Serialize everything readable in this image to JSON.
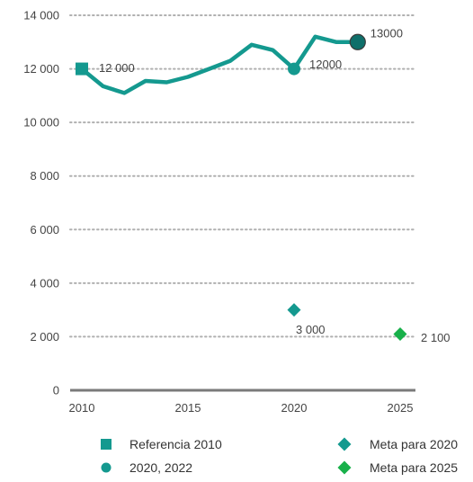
{
  "chart_data": {
    "type": "line",
    "title": "",
    "xlabel": "",
    "ylabel": "",
    "xlim": [
      2010,
      2025
    ],
    "ylim": [
      0,
      14000
    ],
    "grid": true,
    "legend_position": "bottom",
    "x_ticks": [
      2010,
      2015,
      2020,
      2025
    ],
    "x_tick_labels": [
      "2010",
      "2015",
      "2020",
      "2025"
    ],
    "y_ticks": [
      0,
      2000,
      4000,
      6000,
      8000,
      10000,
      12000,
      14000
    ],
    "y_tick_labels": [
      "0",
      "2 000",
      "4 000",
      "6 000",
      "8 000",
      "10 000",
      "12 000",
      "14 000"
    ],
    "colors": {
      "line": "#14998f",
      "marker_dark": "#0f6f6a",
      "goal_2025": "#18b04a",
      "grid": "#b0b0b0",
      "axis": "#7a7a7a",
      "text": "#444444"
    },
    "series": [
      {
        "x": [
          2010,
          2011,
          2012,
          2013,
          2014,
          2015,
          2016,
          2017,
          2018,
          2019,
          2020,
          2021,
          2022,
          2023
        ],
        "y": [
          12000,
          11350,
          11100,
          11550,
          11500,
          11700,
          12000,
          12300,
          12900,
          12700,
          12000,
          13200,
          13000,
          13000
        ]
      }
    ],
    "points": [
      {
        "key": "ref2010",
        "x": 2010,
        "y": 12000,
        "marker": "square",
        "color": "#14998f",
        "label": "12 000"
      },
      {
        "key": "p2020",
        "x": 2020,
        "y": 12000,
        "marker": "circle",
        "color": "#14998f",
        "label": "12000"
      },
      {
        "key": "p2022",
        "x": 2023,
        "y": 13000,
        "marker": "circle-dark",
        "color": "#0f6f6a",
        "label": "13000"
      },
      {
        "key": "goal2020",
        "x": 2020,
        "y": 3000,
        "marker": "diamond",
        "color": "#14998f",
        "label": "3 000"
      },
      {
        "key": "goal2025",
        "x": 2025,
        "y": 2100,
        "marker": "diamond",
        "color": "#18b04a",
        "label": "2 100"
      }
    ],
    "legend": [
      {
        "label": "Referencia 2010",
        "marker": "square",
        "color": "#14998f"
      },
      {
        "label": "Meta para 2020",
        "marker": "diamond",
        "color": "#14998f"
      },
      {
        "label": "2020, 2022",
        "marker": "circle",
        "color": "#14998f"
      },
      {
        "label": "Meta para 2025",
        "marker": "diamond",
        "color": "#18b04a"
      }
    ]
  }
}
